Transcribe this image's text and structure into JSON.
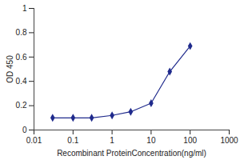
{
  "chart_data": {
    "type": "line",
    "x": [
      0.03,
      0.1,
      0.3,
      1,
      3,
      10,
      30,
      100
    ],
    "values": [
      0.1,
      0.1,
      0.1,
      0.12,
      0.15,
      0.22,
      0.48,
      0.69
    ],
    "color": "#1f2a8c",
    "marker": "diamond",
    "log": "x",
    "grid": false,
    "xlabel": "Recombinant ProteinConcentration(ng/ml)",
    "ylabel": "OD 450",
    "xlim": [
      0.01,
      1000
    ],
    "xticks": [
      0.01,
      0.1,
      1,
      10,
      100,
      1000
    ],
    "ylim": [
      0,
      1
    ],
    "yticks": [
      0,
      0.2,
      0.4,
      0.6,
      0.8,
      1
    ]
  }
}
